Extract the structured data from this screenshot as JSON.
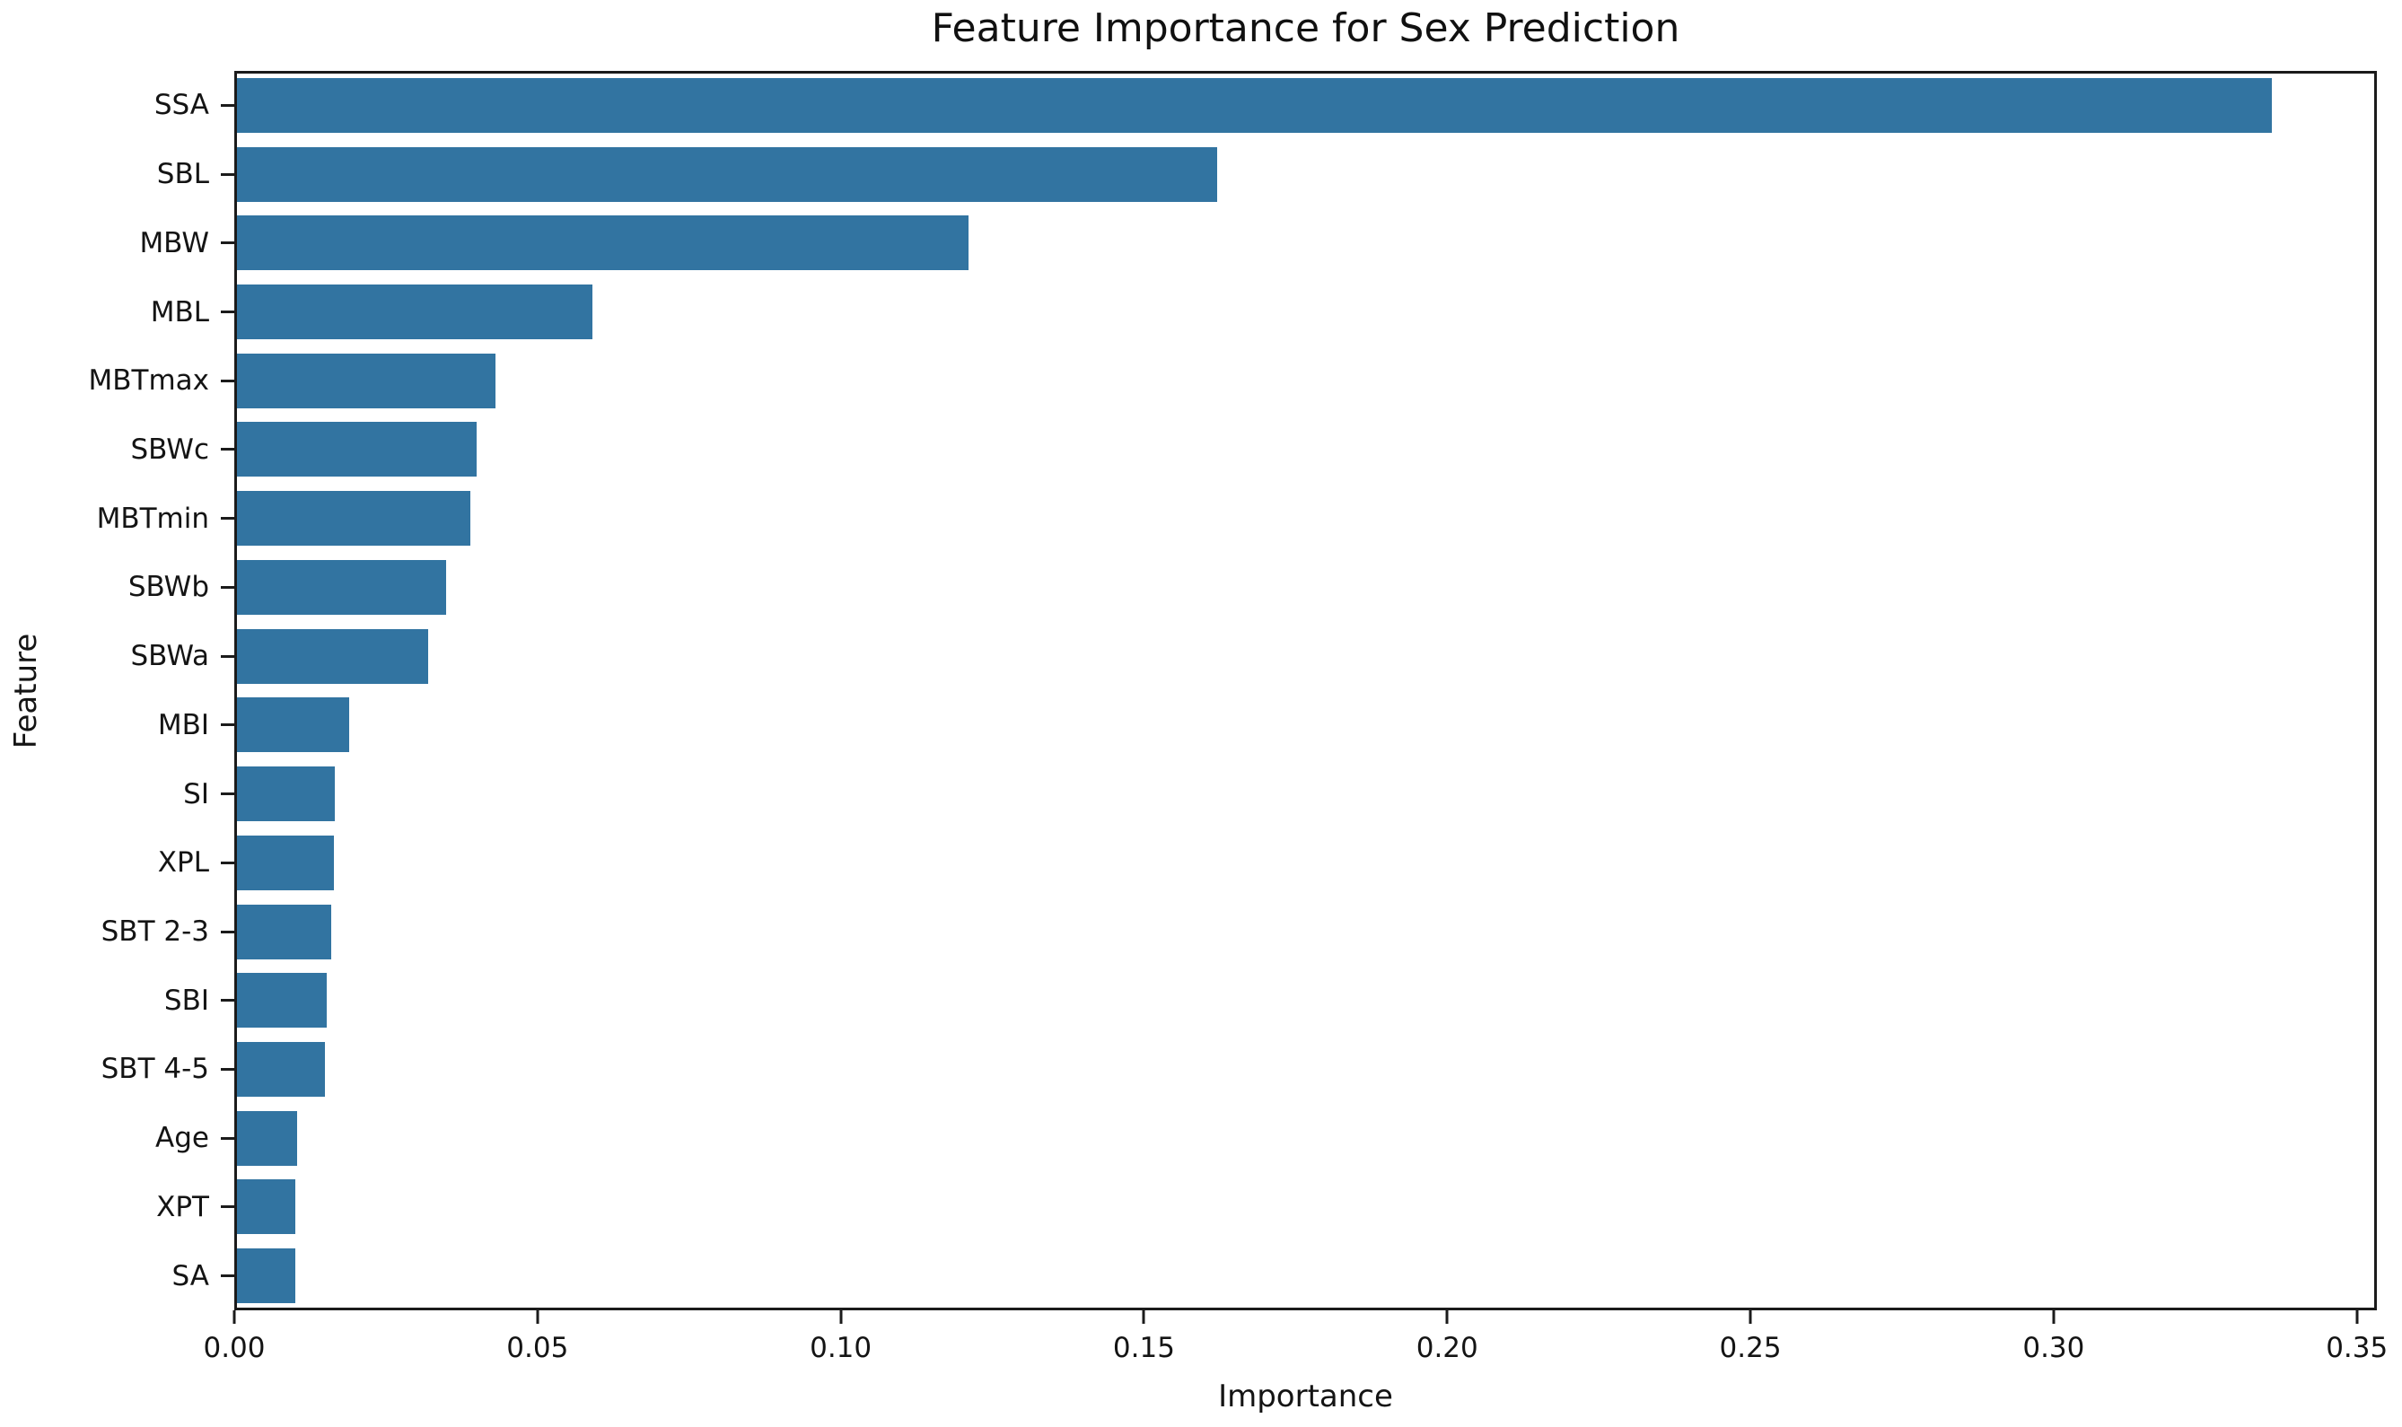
{
  "chart_data": {
    "type": "bar",
    "orientation": "horizontal",
    "title": "Feature Importance for Sex Prediction",
    "xlabel": "Importance",
    "ylabel": "Feature",
    "categories": [
      "SSA",
      "SBL",
      "MBW",
      "MBL",
      "MBTmax",
      "SBWc",
      "MBTmin",
      "SBWb",
      "SBWa",
      "MBI",
      "SI",
      "XPL",
      "SBT 2-3",
      "SBI",
      "SBT 4-5",
      "Age",
      "XPT",
      "SA"
    ],
    "values": [
      0.336,
      0.162,
      0.121,
      0.059,
      0.043,
      0.04,
      0.039,
      0.035,
      0.032,
      0.019,
      0.0166,
      0.0165,
      0.016,
      0.0153,
      0.015,
      0.0103,
      0.01,
      0.01
    ],
    "xlim": [
      0,
      0.3533
    ],
    "xticks": [
      0.0,
      0.05,
      0.1,
      0.15,
      0.2,
      0.25,
      0.3,
      0.35
    ],
    "xtick_labels": [
      "0.00",
      "0.05",
      "0.10",
      "0.15",
      "0.20",
      "0.25",
      "0.30",
      "0.35"
    ],
    "bar_color": "#3274a1",
    "axis_color": "#1b1b1b",
    "grid": false,
    "legend": null
  }
}
